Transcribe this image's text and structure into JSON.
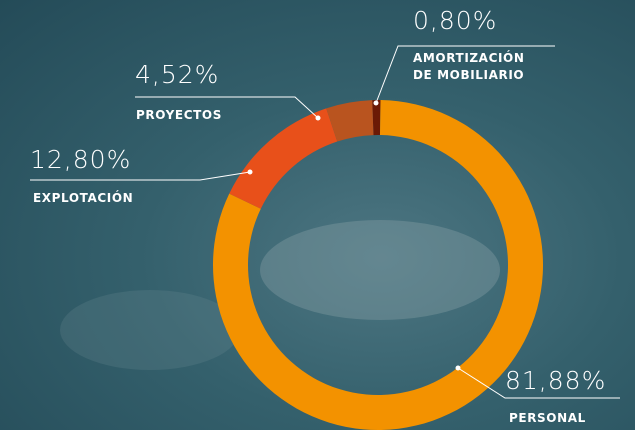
{
  "chart_data": {
    "type": "donut",
    "categories": [
      "AMORTIZACIÓN DE MOBILIARIO",
      "PERSONAL",
      "EXPLOTACIÓN",
      "PROYECTOS"
    ],
    "values": [
      0.8,
      81.88,
      12.8,
      4.52
    ],
    "value_labels": [
      "0,80%",
      "81,88%",
      "12,80%",
      "4,52%"
    ],
    "colors": [
      "#6b1a06",
      "#f39200",
      "#e8501a",
      "#b9541f"
    ]
  }
}
